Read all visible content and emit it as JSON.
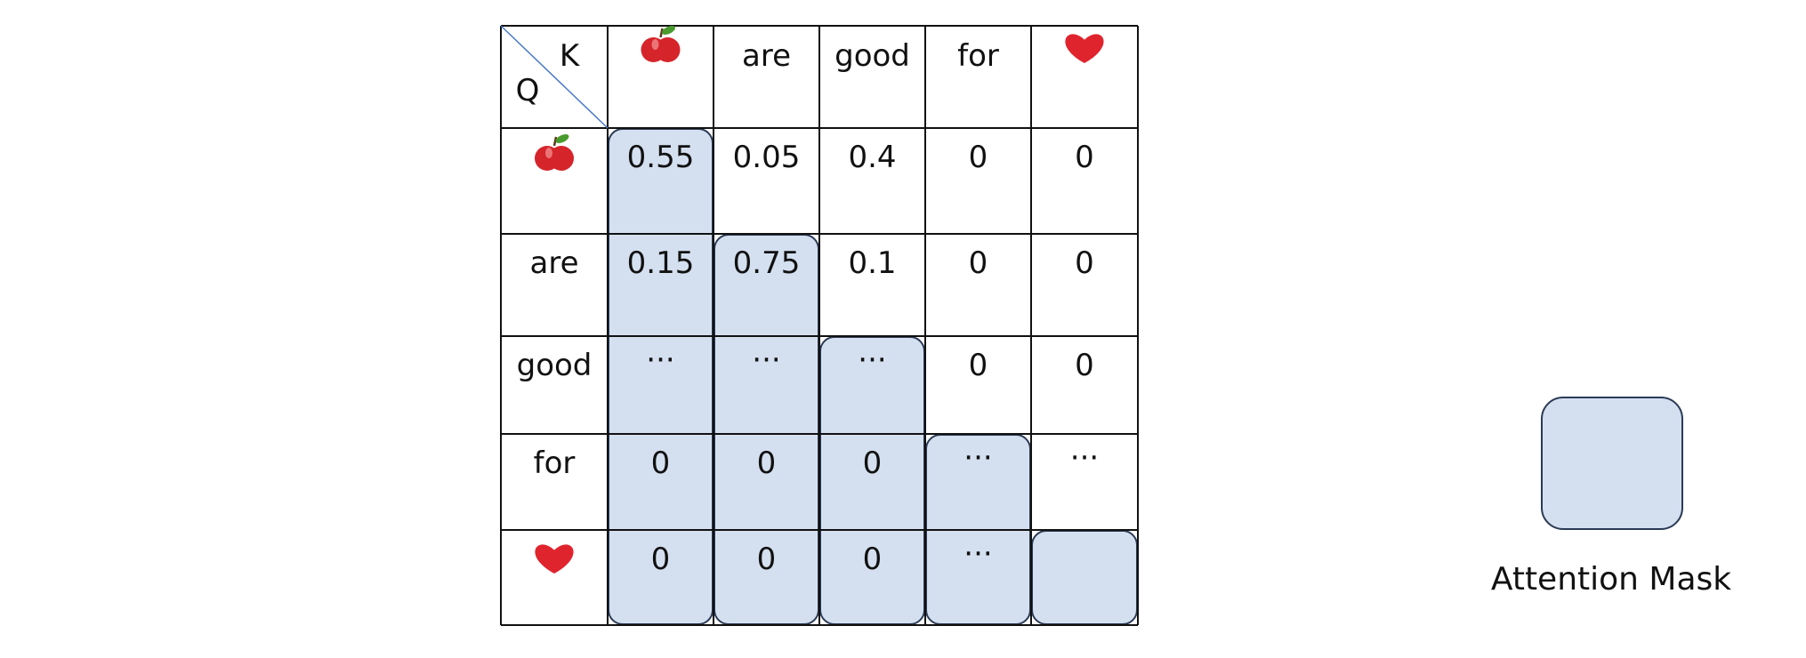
{
  "corner": {
    "k_label": "K",
    "q_label": "Q"
  },
  "keys": [
    {
      "text": "",
      "icon": "apple-icon"
    },
    {
      "text": "are"
    },
    {
      "text": "good"
    },
    {
      "text": "for"
    },
    {
      "text": "",
      "icon": "heart-icon"
    }
  ],
  "queries": [
    {
      "text": "",
      "icon": "apple-icon"
    },
    {
      "text": "are"
    },
    {
      "text": "good"
    },
    {
      "text": "for"
    },
    {
      "text": "",
      "icon": "heart-icon"
    }
  ],
  "cells": [
    [
      "0.55",
      "0.05",
      "0.4",
      "0",
      "0"
    ],
    [
      "0.15",
      "0.75",
      "0.1",
      "0",
      "0"
    ],
    [
      "···",
      "···",
      "···",
      "0",
      "0"
    ],
    [
      "0",
      "0",
      "0",
      "···",
      "···"
    ],
    [
      "0",
      "0",
      "0",
      "···",
      ""
    ]
  ],
  "mask": {
    "start_rows": [
      0,
      1,
      2,
      3,
      4
    ]
  },
  "legend": {
    "label": "Attention Mask"
  },
  "colors": {
    "mask_fill": "#d4e0f0",
    "mask_stroke": "#2b3a55",
    "grid": "#111111",
    "diagonal": "#4a78c8",
    "apple": "#d6242b",
    "heart": "#e0242e"
  }
}
